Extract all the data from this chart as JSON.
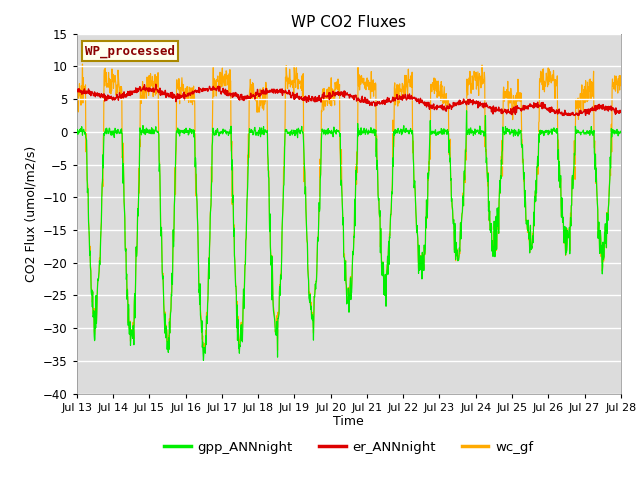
{
  "title": "WP CO2 Fluxes",
  "xlabel": "Time",
  "ylabel_text": "CO2 Flux (umol/m2/s)",
  "ylim": [
    -40,
    15
  ],
  "yticks": [
    -40,
    -35,
    -30,
    -25,
    -20,
    -15,
    -10,
    -5,
    0,
    5,
    10,
    15
  ],
  "xtick_labels": [
    "Jul 13",
    "Jul 14",
    "Jul 15",
    "Jul 16",
    "Jul 17",
    "Jul 18",
    "Jul 19",
    "Jul 20",
    "Jul 21",
    "Jul 22",
    "Jul 23",
    "Jul 24",
    "Jul 25",
    "Jul 26",
    "Jul 27",
    "Jul 28"
  ],
  "color_gpp": "#00ee00",
  "color_er": "#dd0000",
  "color_wc": "#ffaa00",
  "bg_color": "#dcdcdc",
  "legend_label": "WP_processed",
  "legend_fg": "#8b0000",
  "legend_bg": "#fffff0",
  "legend_box_edge": "#aa8800",
  "series_labels": [
    "gpp_ANNnight",
    "er_ANNnight",
    "wc_gf"
  ],
  "n_points_per_day": 96,
  "n_days": 15
}
